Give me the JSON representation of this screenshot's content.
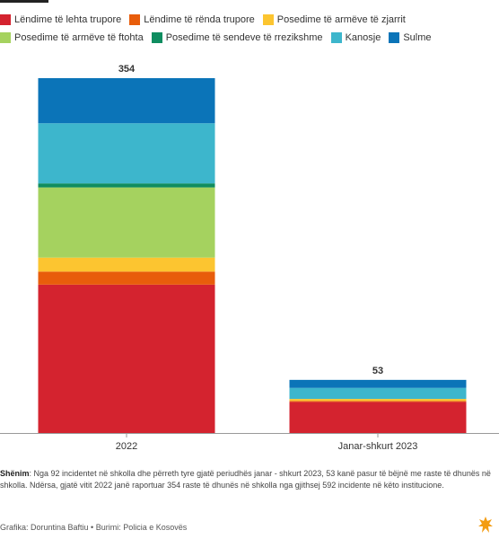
{
  "legend": [
    {
      "label": "Lëndime të lehta trupore",
      "color": "#d4232f"
    },
    {
      "label": "Lëndime të rënda trupore",
      "color": "#e85d0b"
    },
    {
      "label": "Posedime të armëve të zjarrit",
      "color": "#fcc530"
    },
    {
      "label": "Posedime të armëve të ftohta",
      "color": "#a5d25f"
    },
    {
      "label": "Posedime të sendeve të rrezikshme",
      "color": "#0f8d60"
    },
    {
      "label": "Kanosje",
      "color": "#3db6cc"
    },
    {
      "label": "Sulme",
      "color": "#0b74b8"
    }
  ],
  "chart_data": {
    "type": "bar",
    "stacked": true,
    "categories": [
      "2022",
      "Janar-shkurt 2023"
    ],
    "totals": [
      354,
      53
    ],
    "series": [
      {
        "name": "Lëndime të lehta trupore",
        "color": "#d4232f",
        "values": [
          148,
          31
        ]
      },
      {
        "name": "Lëndime të rënda trupore",
        "color": "#e85d0b",
        "values": [
          13,
          1
        ]
      },
      {
        "name": "Posedime të armëve të zjarrit",
        "color": "#fcc530",
        "values": [
          14,
          2
        ]
      },
      {
        "name": "Posedime të armëve të ftohta",
        "color": "#a5d25f",
        "values": [
          70,
          0
        ]
      },
      {
        "name": "Posedime të sendeve të rrezikshme",
        "color": "#0f8d60",
        "values": [
          4,
          0
        ]
      },
      {
        "name": "Kanosje",
        "color": "#3db6cc",
        "values": [
          60,
          11
        ]
      },
      {
        "name": "Sulme",
        "color": "#0b74b8",
        "values": [
          45,
          8
        ]
      }
    ],
    "ylim": [
      0,
      354
    ],
    "grid": false,
    "legend_position": "top"
  },
  "note": {
    "label": "Shënim",
    "text": ": Nga 92 incidentet në shkolla dhe përreth tyre gjatë periudhës janar - shkurt 2023, 53 kanë pasur të bëjnë me raste të dhunës në shkolla. Ndërsa, gjatë vitit 2022 janë raportuar 354 raste të dhunës në shkolla nga gjithsej 592 incidente në këto institucione."
  },
  "footer": "Grafika: Doruntina Baftiu • Burimi: Policia e Kosovës"
}
